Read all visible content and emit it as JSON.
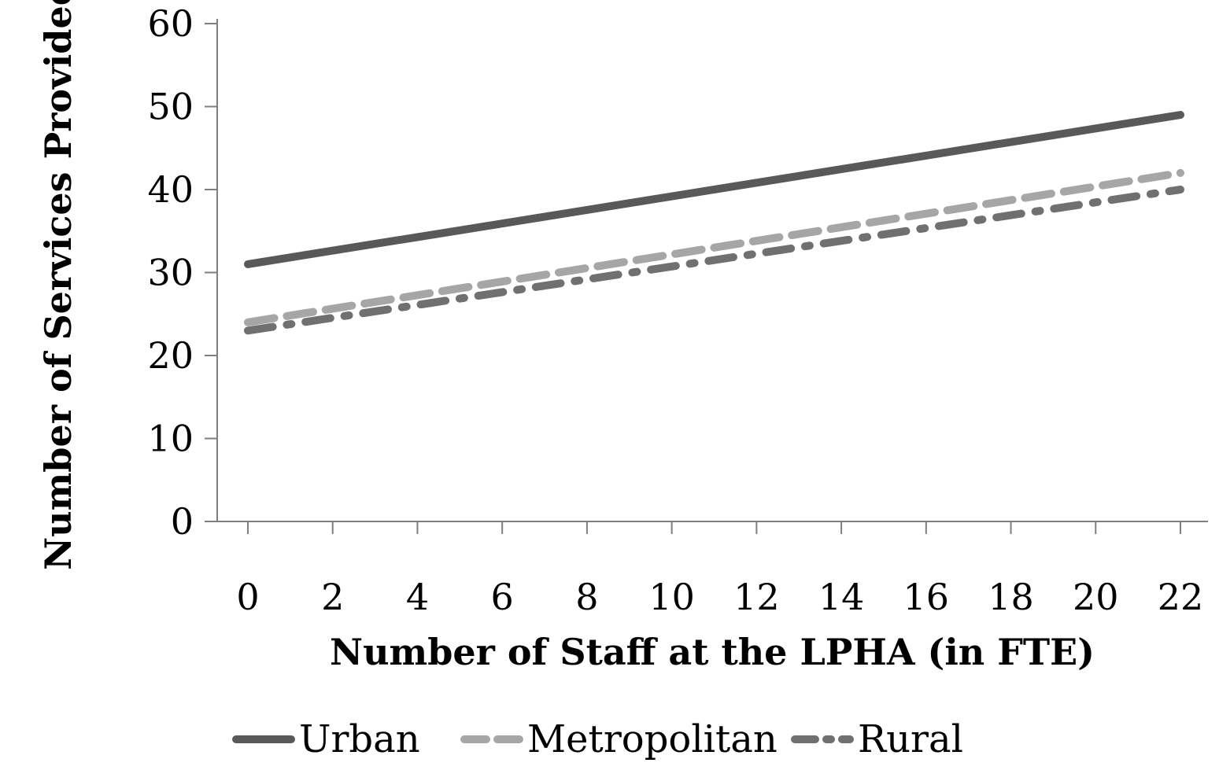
{
  "chart_data": {
    "type": "line",
    "xlabel": "Number of Staff at the LPHA (in FTE)",
    "ylabel": "Number of Services Provided",
    "xlim": [
      0,
      22
    ],
    "ylim": [
      0,
      60
    ],
    "x_ticks": [
      "0",
      "2",
      "4",
      "6",
      "8",
      "10",
      "12",
      "14",
      "16",
      "18",
      "20",
      "22"
    ],
    "y_ticks": [
      "0",
      "10",
      "20",
      "30",
      "40",
      "50",
      "60"
    ],
    "legend_position": "bottom",
    "grid": false,
    "colors": {
      "urban": "#595959",
      "metropolitan": "#a6a6a6",
      "rural": "#707070",
      "axis": "#7f7f7f"
    },
    "series": [
      {
        "name": "Urban",
        "style": "solid",
        "x": [
          0,
          22
        ],
        "y": [
          31,
          49
        ]
      },
      {
        "name": "Metropolitan",
        "style": "dashed",
        "x": [
          0,
          22
        ],
        "y": [
          24,
          42
        ]
      },
      {
        "name": "Rural",
        "style": "dash-dot",
        "x": [
          0,
          22
        ],
        "y": [
          23,
          40
        ]
      }
    ]
  }
}
